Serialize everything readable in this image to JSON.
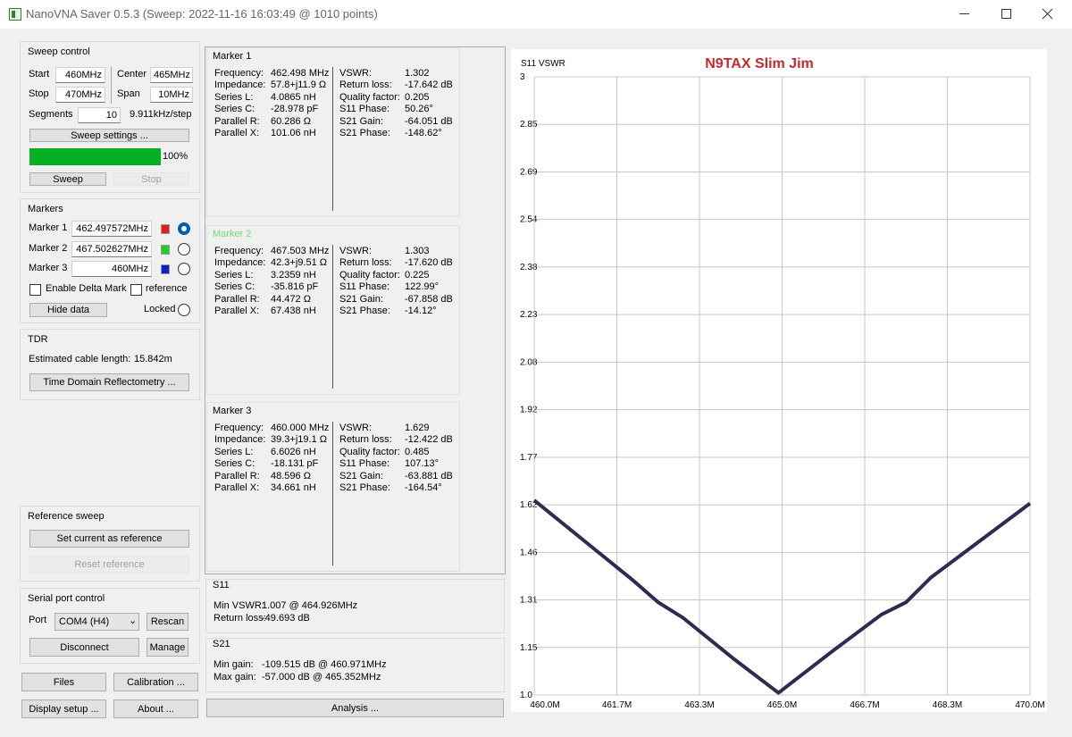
{
  "window": {
    "title": "NanoVNA Saver 0.5.3 (Sweep: 2022-11-16 16:03:49 @ 1010 points)"
  },
  "sweep_control": {
    "title": "Sweep control",
    "start_label": "Start",
    "start": "460MHz",
    "center_label": "Center",
    "center": "465MHz",
    "stop_label": "Stop",
    "stop": "470MHz",
    "span_label": "Span",
    "span": "10MHz",
    "segments_label": "Segments",
    "segments": 10,
    "step": "9.911kHz/step",
    "settings_button": "Sweep settings ...",
    "progress": 100,
    "progress_label": "100%",
    "progress_color": "#06b025",
    "sweep_button": "Sweep",
    "stop_button": "Stop"
  },
  "markers": {
    "title": "Markers",
    "items": [
      {
        "label": "Marker 1",
        "frequency": "462.497572MHz",
        "color": "#e0201c",
        "selected": true
      },
      {
        "label": "Marker 2",
        "frequency": "467.502627MHz",
        "color": "#20d020",
        "selected": false
      },
      {
        "label": "Marker 3",
        "frequency": "460MHz",
        "color": "#1020c8",
        "selected": false
      }
    ],
    "delta_mark": "Enable Delta Mark",
    "reference": "reference",
    "hide_button": "Hide data",
    "locked": "Locked"
  },
  "tdr": {
    "title": "TDR",
    "cable_label": "Estimated cable length:",
    "cable_length": "15.842m",
    "button": "Time Domain Reflectometry ..."
  },
  "reference_sweep": {
    "title": "Reference sweep",
    "set_button": "Set current as reference",
    "reset_button": "Reset reference"
  },
  "serial_port": {
    "title": "Serial port control",
    "port_label": "Port",
    "port": "COM4 (H4)",
    "rescan_button": "Rescan",
    "disconnect_button": "Disconnect",
    "manage_button": "Manage"
  },
  "bottom_buttons": {
    "files": "Files",
    "calibration": "Calibration ...",
    "display_setup": "Display setup ...",
    "about": "About ...",
    "analysis": "Analysis ..."
  },
  "marker_panels": [
    {
      "title": "Marker 1",
      "title_color": "#000000",
      "left": [
        [
          "Frequency:",
          "462.498 MHz"
        ],
        [
          "Impedance:",
          "57.8+j11.9 Ω"
        ],
        [
          "Series L:",
          "4.0865 nH"
        ],
        [
          "Series C:",
          "-28.978 pF"
        ],
        [
          "Parallel R:",
          "60.286 Ω"
        ],
        [
          "Parallel X:",
          "101.06 nH"
        ]
      ],
      "right": [
        [
          "VSWR:",
          "1.302"
        ],
        [
          "Return loss:",
          "-17.642 dB"
        ],
        [
          "Quality factor:",
          "0.205"
        ],
        [
          "S11 Phase:",
          "50.26°"
        ],
        [
          "S21 Gain:",
          "-64.051 dB"
        ],
        [
          "S21 Phase:",
          "-148.62°"
        ]
      ]
    },
    {
      "title": "Marker 2",
      "title_color": "#6fdc6f",
      "left": [
        [
          "Frequency:",
          "467.503 MHz"
        ],
        [
          "Impedance:",
          "42.3+j9.51 Ω"
        ],
        [
          "Series L:",
          "3.2359 nH"
        ],
        [
          "Series C:",
          "-35.816 pF"
        ],
        [
          "Parallel R:",
          "44.472 Ω"
        ],
        [
          "Parallel X:",
          "67.438 nH"
        ]
      ],
      "right": [
        [
          "VSWR:",
          "1.303"
        ],
        [
          "Return loss:",
          "-17.620 dB"
        ],
        [
          "Quality factor:",
          "0.225"
        ],
        [
          "S11 Phase:",
          "122.99°"
        ],
        [
          "S21 Gain:",
          "-67.858 dB"
        ],
        [
          "S21 Phase:",
          "-14.12°"
        ]
      ]
    },
    {
      "title": "Marker 3",
      "title_color": "#000000",
      "left": [
        [
          "Frequency:",
          "460.000 MHz"
        ],
        [
          "Impedance:",
          "39.3+j19.1 Ω"
        ],
        [
          "Series L:",
          "6.6026 nH"
        ],
        [
          "Series C:",
          "-18.131 pF"
        ],
        [
          "Parallel R:",
          "48.596 Ω"
        ],
        [
          "Parallel X:",
          "34.661 nH"
        ]
      ],
      "right": [
        [
          "VSWR:",
          "1.629"
        ],
        [
          "Return loss:",
          "-12.422 dB"
        ],
        [
          "Quality factor:",
          "0.485"
        ],
        [
          "S11 Phase:",
          "107.13°"
        ],
        [
          "S21 Gain:",
          "-63.881 dB"
        ],
        [
          "S21 Phase:",
          "-164.54°"
        ]
      ]
    }
  ],
  "s11": {
    "title": "S11",
    "rows": [
      [
        "Min VSWR:",
        "1.007 @ 464.926MHz"
      ],
      [
        "Return loss:",
        "-49.693 dB"
      ]
    ]
  },
  "s21": {
    "title": "S21",
    "rows": [
      [
        "Min gain:",
        "-109.515 dB @ 460.971MHz"
      ],
      [
        "Max gain:",
        "-57.000 dB @ 465.352MHz"
      ]
    ]
  },
  "vswr_chart": {
    "type": "line",
    "title": "N9TAX Slim Jim",
    "title_color": "#c8282d",
    "y_label": "S11 VSWR",
    "color": "#2c2c4e",
    "grid": true,
    "x": [
      460,
      461,
      462,
      462.5,
      463,
      464,
      464.926,
      466,
      467,
      467.5,
      468,
      469,
      470
    ],
    "values": [
      1.63,
      1.5,
      1.37,
      1.3,
      1.25,
      1.12,
      1.007,
      1.14,
      1.26,
      1.3,
      1.38,
      1.5,
      1.62
    ],
    "xlim": [
      460,
      470
    ],
    "ylim": [
      1,
      3
    ],
    "xticks": [
      {
        "value": 460,
        "label": "460.0M"
      },
      {
        "value": 461.667,
        "label": "461.7M"
      },
      {
        "value": 463.333,
        "label": "463.3M"
      },
      {
        "value": 465,
        "label": "465.0M"
      },
      {
        "value": 466.667,
        "label": "466.7M"
      },
      {
        "value": 468.333,
        "label": "468.3M"
      },
      {
        "value": 470,
        "label": "470.0M"
      }
    ],
    "yticks": [
      3,
      {
        "value": 2.8462,
        "label": "2.85"
      },
      {
        "value": 2.6923,
        "label": "2.69"
      },
      {
        "value": 2.5385,
        "label": "2.54"
      },
      {
        "value": 2.3846,
        "label": "2.38"
      },
      {
        "value": 2.2308,
        "label": "2.23"
      },
      {
        "value": 2.0769,
        "label": "2.08"
      },
      {
        "value": 1.9231,
        "label": "1.92"
      },
      {
        "value": 1.7692,
        "label": "1.77"
      },
      {
        "value": 1.6154,
        "label": "1.62"
      },
      {
        "value": 1.4615,
        "label": "1.46"
      },
      {
        "value": 1.3077,
        "label": "1.31"
      },
      {
        "value": 1.1538,
        "label": "1.15"
      },
      {
        "value": 1,
        "label": "1.0"
      }
    ]
  }
}
